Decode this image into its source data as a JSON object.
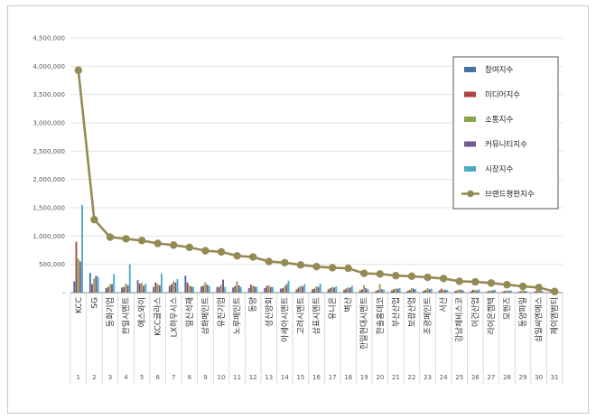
{
  "chart_data": {
    "type": "bar",
    "ylim": [
      0,
      4500000
    ],
    "yticks": [
      "-",
      "500,000",
      "1,000,000",
      "1,500,000",
      "2,000,000",
      "2,500,000",
      "3,000,000",
      "3,500,000",
      "4,000,000",
      "4,500,000"
    ],
    "legend_position": "right",
    "grid": true,
    "index_labels": [
      "1",
      "2",
      "3",
      "4",
      "5",
      "6",
      "7",
      "8",
      "9",
      "10",
      "11",
      "12",
      "13",
      "14",
      "15",
      "16",
      "17",
      "18",
      "19",
      "20",
      "21",
      "22",
      "23",
      "24",
      "25",
      "26",
      "27",
      "28",
      "29",
      "30",
      "31"
    ],
    "categories": [
      "KCC",
      "SG",
      "동화기업",
      "한일시멘트",
      "에스와이",
      "KCC글라스",
      "LX하우시스",
      "일신석재",
      "삼화페인트",
      "유진기업",
      "노루페인트",
      "동양",
      "성신양회",
      "아세아시멘트",
      "고려시멘트",
      "삼표시멘트",
      "유니온",
      "벽산",
      "한일현대시멘트",
      "한솔홈데코",
      "부산산업",
      "보광산업",
      "조광페인트",
      "서산",
      "강남제비스코",
      "이건산업",
      "라이온켐텍",
      "모헨즈",
      "동양파일",
      "삼일씨엔에스",
      "제이엠범티"
    ],
    "series": [
      {
        "name": "참여지수",
        "type": "bar",
        "color": "#4572a7",
        "values": [
          200000,
          350000,
          80000,
          90000,
          220000,
          100000,
          120000,
          300000,
          110000,
          100000,
          90000,
          80000,
          80000,
          70000,
          60000,
          60000,
          60000,
          50000,
          40000,
          30000,
          40000,
          30000,
          30000,
          40000,
          30000,
          30000,
          20000,
          20000,
          20000,
          20000,
          10000
        ]
      },
      {
        "name": "미디어지수",
        "type": "bar",
        "color": "#aa4643",
        "values": [
          900000,
          150000,
          100000,
          100000,
          160000,
          180000,
          150000,
          180000,
          120000,
          100000,
          120000,
          140000,
          120000,
          80000,
          90000,
          70000,
          80000,
          70000,
          60000,
          50000,
          60000,
          50000,
          50000,
          70000,
          40000,
          50000,
          30000,
          30000,
          30000,
          30000,
          15000
        ]
      },
      {
        "name": "소통지수",
        "type": "bar",
        "color": "#89a54e",
        "values": [
          600000,
          250000,
          150000,
          160000,
          170000,
          150000,
          200000,
          130000,
          180000,
          140000,
          200000,
          120000,
          130000,
          110000,
          120000,
          110000,
          100000,
          90000,
          130000,
          150000,
          70000,
          80000,
          80000,
          50000,
          60000,
          50000,
          40000,
          40000,
          40000,
          30000,
          15000
        ]
      },
      {
        "name": "커뮤니티지수",
        "type": "bar",
        "color": "#71588f",
        "values": [
          550000,
          300000,
          150000,
          130000,
          120000,
          130000,
          180000,
          110000,
          140000,
          230000,
          130000,
          110000,
          100000,
          150000,
          110000,
          100000,
          90000,
          90000,
          80000,
          60000,
          70000,
          70000,
          60000,
          50000,
          50000,
          40000,
          40000,
          30000,
          30000,
          30000,
          15000
        ]
      },
      {
        "name": "시장지수",
        "type": "bar",
        "color": "#4bacc6",
        "values": [
          1550000,
          280000,
          330000,
          500000,
          160000,
          340000,
          240000,
          100000,
          120000,
          100000,
          100000,
          100000,
          100000,
          210000,
          150000,
          160000,
          110000,
          120000,
          60000,
          50000,
          80000,
          60000,
          70000,
          50000,
          40000,
          60000,
          50000,
          40000,
          30000,
          30000,
          10000
        ]
      },
      {
        "name": "브랜드평판지수",
        "type": "line",
        "color": "#948a54",
        "values": [
          3930000,
          1290000,
          980000,
          950000,
          920000,
          870000,
          840000,
          800000,
          740000,
          720000,
          650000,
          630000,
          550000,
          530000,
          490000,
          460000,
          440000,
          430000,
          340000,
          330000,
          300000,
          290000,
          270000,
          250000,
          200000,
          190000,
          170000,
          140000,
          110000,
          90000,
          20000
        ]
      }
    ]
  }
}
